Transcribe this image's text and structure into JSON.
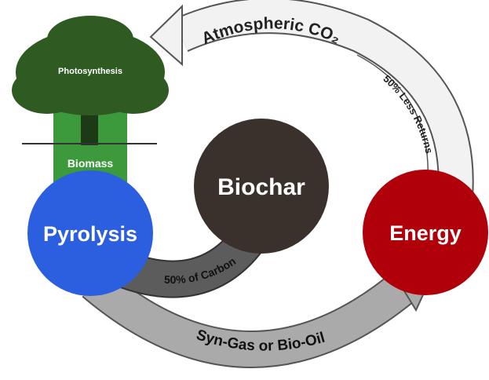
{
  "diagram": {
    "cycle_label": "Atmospheric CO₂",
    "returns_label": "50% Less Returns",
    "tree_label": "Photosynthesis",
    "stem_label": "Biomass",
    "nodes": [
      {
        "label": "Pyrolysis"
      },
      {
        "label": "Biochar"
      },
      {
        "label": "Energy"
      }
    ],
    "carbon_label": "50% of Carbon",
    "output_label": "Syn-Gas or Bio-Oil"
  }
}
